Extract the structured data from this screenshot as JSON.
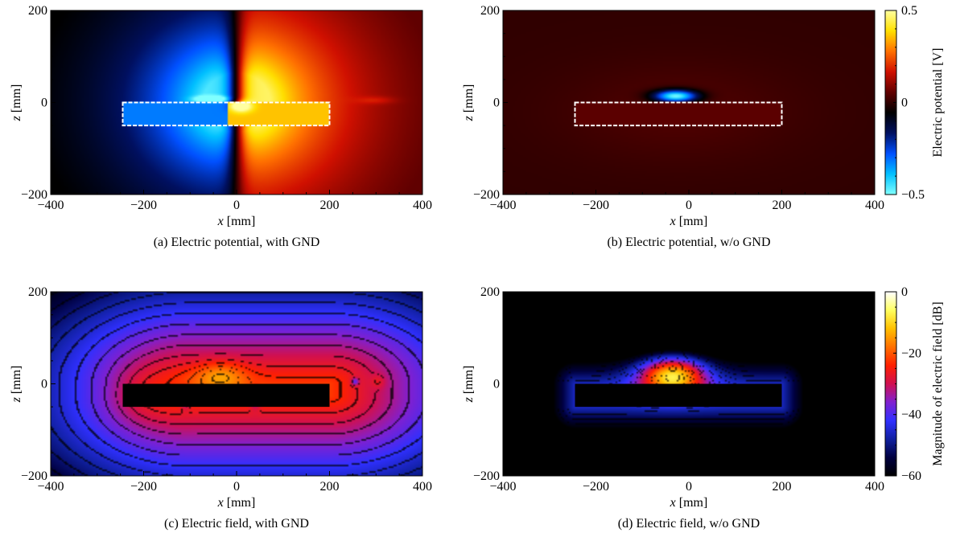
{
  "chart_data": [
    {
      "type": "heatmap",
      "panel": "a",
      "caption": "(a) Electric potential, with GND",
      "xlabel": "[mm]",
      "ylabel": "[mm]",
      "xlabel_var": "x",
      "ylabel_var": "z",
      "xlim": [
        -400,
        400
      ],
      "ylim": [
        -200,
        200
      ],
      "xticks": [
        -400,
        -200,
        0,
        200,
        400
      ],
      "yticks": [
        -200,
        0,
        200
      ],
      "xtick_labels": [
        "−400",
        "−200",
        "0",
        "200",
        "400"
      ],
      "ytick_labels": [
        "−200",
        "0",
        "200"
      ],
      "outline_box": {
        "x": [
          -245,
          200
        ],
        "z": [
          -50,
          0
        ]
      },
      "field": "potential_with_gnd",
      "colorbar": 0
    },
    {
      "type": "heatmap",
      "panel": "b",
      "caption": "(b) Electric potential, w/o GND",
      "xlabel": "[mm]",
      "ylabel": "[mm]",
      "xlabel_var": "x",
      "ylabel_var": "z",
      "xlim": [
        -400,
        400
      ],
      "ylim": [
        -200,
        200
      ],
      "xticks": [
        -400,
        -200,
        0,
        200,
        400
      ],
      "yticks": [
        -200,
        0,
        200
      ],
      "xtick_labels": [
        "−400",
        "−200",
        "0",
        "200",
        "400"
      ],
      "ytick_labels": [
        "−200",
        "0",
        "200"
      ],
      "outline_box": {
        "x": [
          -245,
          200
        ],
        "z": [
          -50,
          0
        ]
      },
      "field": "potential_without_gnd",
      "colorbar": 0
    },
    {
      "type": "heatmap",
      "panel": "c",
      "caption": "(c) Electric field, with GND",
      "xlabel": "[mm]",
      "ylabel": "[mm]",
      "xlabel_var": "x",
      "ylabel_var": "z",
      "xlim": [
        -400,
        400
      ],
      "ylim": [
        -200,
        200
      ],
      "xticks": [
        -400,
        -200,
        0,
        200,
        400
      ],
      "yticks": [
        -200,
        0,
        200
      ],
      "xtick_labels": [
        "−400",
        "−200",
        "0",
        "200",
        "400"
      ],
      "ytick_labels": [
        "−200",
        "0",
        "200"
      ],
      "solid_box": {
        "x": [
          -245,
          200
        ],
        "z": [
          -50,
          0
        ]
      },
      "field": "field_with_gnd",
      "colorbar": 1
    },
    {
      "type": "heatmap",
      "panel": "d",
      "caption": "(d) Electric field, w/o GND",
      "xlabel": "[mm]",
      "ylabel": "[mm]",
      "xlabel_var": "x",
      "ylabel_var": "z",
      "xlim": [
        -400,
        400
      ],
      "ylim": [
        -200,
        200
      ],
      "xticks": [
        -400,
        -200,
        0,
        200,
        400
      ],
      "yticks": [
        -200,
        0,
        200
      ],
      "xtick_labels": [
        "−400",
        "−200",
        "0",
        "200",
        "400"
      ],
      "ytick_labels": [
        "−200",
        "0",
        "200"
      ],
      "solid_box": {
        "x": [
          -245,
          200
        ],
        "z": [
          -50,
          0
        ]
      },
      "field": "field_without_gnd",
      "colorbar": 1
    }
  ],
  "colorbars": [
    {
      "label": "Electric potential [V]",
      "range": [
        -0.5,
        0.5
      ],
      "ticks": [
        0.5,
        0,
        -0.5
      ],
      "tick_labels": [
        "0.5",
        "0",
        "−0.5"
      ],
      "colormap": [
        "#80ffff",
        "#00c0ff",
        "#0050ff",
        "#001060",
        "#000000",
        "#600000",
        "#d01000",
        "#ff7000",
        "#ffe000",
        "#ffffa0"
      ]
    },
    {
      "label": "Magnitude of electric field [dB]",
      "range": [
        -60,
        0
      ],
      "ticks": [
        0,
        -20,
        -40,
        -60
      ],
      "tick_labels": [
        "0",
        "−20",
        "−40",
        "−60"
      ],
      "colormap": [
        "#000000",
        "#000040",
        "#1020a0",
        "#3030ff",
        "#8020d0",
        "#d01050",
        "#ff2000",
        "#ff7000",
        "#ffc000",
        "#ffff60",
        "#ffffff"
      ]
    }
  ]
}
